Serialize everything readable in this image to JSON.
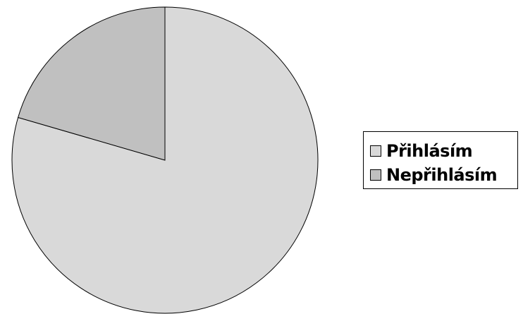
{
  "chart_data": {
    "type": "pie",
    "title": "",
    "start_angle_deg": 0,
    "direction": "clockwise",
    "slices": [
      {
        "label": "Přihlásím",
        "value": 79.5,
        "color": "#d9d9d9"
      },
      {
        "label": "Nepřihlásím",
        "value": 20.5,
        "color": "#c0c0c0"
      }
    ],
    "stroke_color": "#000000",
    "legend_position": "right",
    "grid": false
  }
}
